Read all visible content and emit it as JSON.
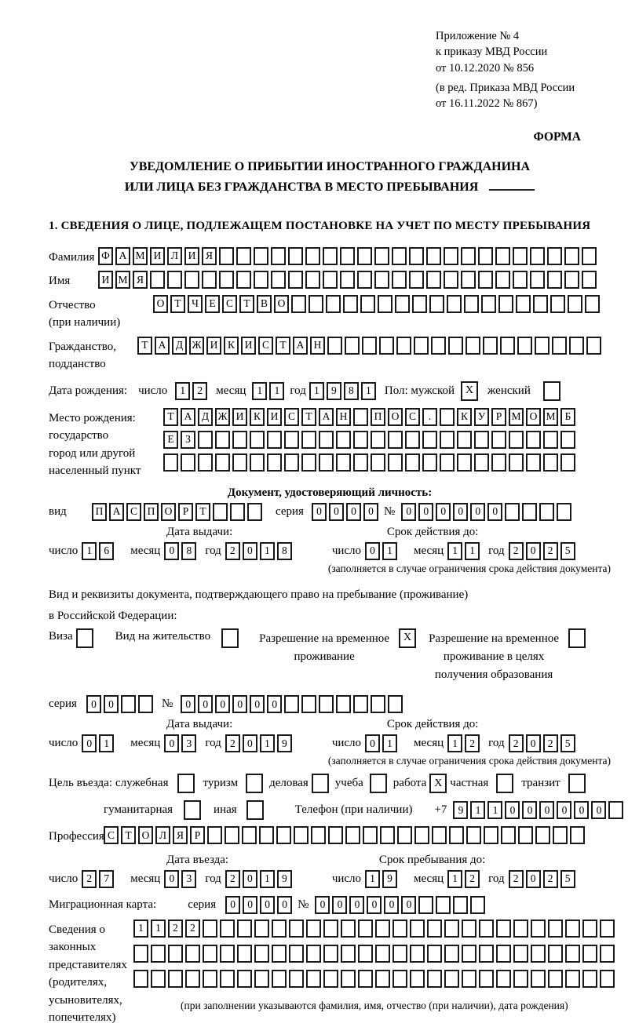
{
  "annex": {
    "line1": "Приложение № 4",
    "line2": "к приказу МВД России",
    "line3": "от 10.12.2020 № 856",
    "line4": "(в ред. Приказа МВД России",
    "line5": "от 16.11.2022 № 867)"
  },
  "forma": "ФОРМА",
  "title_line1": "УВЕДОМЛЕНИЕ О ПРИБЫТИИ ИНОСТРАННОГО ГРАЖДАНИНА",
  "title_line2": "ИЛИ ЛИЦА БЕЗ ГРАЖДАНСТВА В МЕСТО ПРЕБЫВАНИЯ",
  "section1_heading": "1. СВЕДЕНИЯ О ЛИЦЕ, ПОДЛЕЖАЩЕМ ПОСТАНОВКЕ НА УЧЕТ ПО МЕСТУ ПРЕБЫВАНИЯ",
  "surname": {
    "label": "Фамилия",
    "cells": {
      "text": "ФАМИЛИЯ",
      "len": 29
    }
  },
  "firstname": {
    "label": "Имя",
    "cells": {
      "text": "ИМЯ",
      "len": 29
    }
  },
  "patronymic": {
    "label": "Отчество\n(при наличии)",
    "cells": {
      "text": "ОТЧЕСТВО",
      "len": 26
    }
  },
  "citizenship": {
    "label": "Гражданство,\nподданство",
    "cells": {
      "text": "ТАДЖИКИСТАН",
      "len": 27
    }
  },
  "birthdate": {
    "label": "Дата рождения:",
    "day_label": "число",
    "day": {
      "text": "12",
      "len": 2
    },
    "month_label": "месяц",
    "month": {
      "text": "11",
      "len": 2
    },
    "year_label": "год",
    "year": {
      "text": "1981",
      "len": 4
    },
    "sex_label": "Пол: мужской",
    "male_checked": "X",
    "female_label": "женский",
    "female_checked": ""
  },
  "birthplace": {
    "label": "Место рождения:\nгосударство\nгород или другой\nнаселенный пункт",
    "row1": {
      "text": "ТАДЖИКИСТАН ПОС. КУРМОМБ",
      "len": 24
    },
    "row2": {
      "text": "ЕЗ",
      "len": 24
    },
    "row3": {
      "text": "",
      "len": 24
    }
  },
  "identity_doc": {
    "heading": "Документ, удостоверяющий личность:",
    "type_label": "вид",
    "type": {
      "text": "ПАСПОРТ",
      "len": 10
    },
    "series_label": "серия",
    "series": {
      "text": "0000",
      "len": 4
    },
    "number_label": "№",
    "number": {
      "text": "000000",
      "len": 10
    },
    "issue_title": "Дата выдачи:",
    "issue": {
      "day_label": "число",
      "day": {
        "text": "16",
        "len": 2
      },
      "month_label": "месяц",
      "month": {
        "text": "08",
        "len": 2
      },
      "year_label": "год",
      "year": {
        "text": "2018",
        "len": 4
      }
    },
    "valid_title": "Срок действия до:",
    "valid": {
      "day_label": "число",
      "day": {
        "text": "01",
        "len": 2
      },
      "month_label": "месяц",
      "month": {
        "text": "11",
        "len": 2
      },
      "year_label": "год",
      "year": {
        "text": "2025",
        "len": 4
      }
    },
    "note": "(заполняется в случае ограничения срока действия документа)"
  },
  "residence_doc": {
    "heading": "Вид и реквизиты документа, подтверждающего право на пребывание (проживание)\nв Российской Федерации:",
    "opt_visa_label": "Виза",
    "opt_visa_checked": "",
    "opt_residence_label": "Вид на жительство",
    "opt_residence_checked": "",
    "opt_temp_label": "Разрешение на временное\nпроживание",
    "opt_temp_checked": "X",
    "opt_edu_label": "Разрешение на временное\nпроживание в целях\nполучения образования",
    "opt_edu_checked": "",
    "series_label": "серия",
    "series": {
      "text": "00",
      "len": 4
    },
    "number_label": "№",
    "number": {
      "text": "000000",
      "len": 13
    },
    "issue_title": "Дата выдачи:",
    "issue": {
      "day_label": "число",
      "day": {
        "text": "01",
        "len": 2
      },
      "month_label": "месяц",
      "month": {
        "text": "03",
        "len": 2
      },
      "year_label": "год",
      "year": {
        "text": "2019",
        "len": 4
      }
    },
    "valid_title": "Срок действия до:",
    "valid": {
      "day_label": "число",
      "day": {
        "text": "01",
        "len": 2
      },
      "month_label": "месяц",
      "month": {
        "text": "12",
        "len": 2
      },
      "year_label": "год",
      "year": {
        "text": "2025",
        "len": 4
      }
    },
    "note": "(заполняется в случае ограничения срока действия документа)"
  },
  "purpose": {
    "label": "Цель въезда:",
    "opt1_label": "служебная",
    "opt1_checked": "",
    "opt2_label": "туризм",
    "opt2_checked": "",
    "opt3_label": "деловая",
    "opt3_checked": "",
    "opt4_label": "учеба",
    "opt4_checked": "",
    "opt5_label": "работа",
    "opt5_checked": "X",
    "opt6_label": "частная",
    "opt6_checked": "",
    "opt7_label": "транзит",
    "opt7_checked": "",
    "opt8_label": "гуманитарная",
    "opt8_checked": "",
    "opt9_label": "иная",
    "opt9_checked": "",
    "phone_label": "Телефон (при наличии)",
    "phone_prefix": "+7",
    "phone": {
      "text": "911000000",
      "len": 10
    }
  },
  "profession": {
    "label": "Профессия",
    "cells": {
      "text": "СТОЛЯР",
      "len": 28
    }
  },
  "entry": {
    "issue_title": "Дата въезда:",
    "issue": {
      "day_label": "число",
      "day": {
        "text": "27",
        "len": 2
      },
      "month_label": "месяц",
      "month": {
        "text": "03",
        "len": 2
      },
      "year_label": "год",
      "year": {
        "text": "2019",
        "len": 4
      }
    },
    "valid_title": "Срок пребывания до:",
    "valid": {
      "day_label": "число",
      "day": {
        "text": "19",
        "len": 2
      },
      "month_label": "месяц",
      "month": {
        "text": "12",
        "len": 2
      },
      "year_label": "год",
      "year": {
        "text": "2025",
        "len": 4
      }
    }
  },
  "migration_card": {
    "label": "Миграционная карта:",
    "series_label": "серия",
    "series": {
      "text": "0000",
      "len": 4
    },
    "number_label": "№",
    "number": {
      "text": "000000",
      "len": 10
    }
  },
  "representatives": {
    "label": "Сведения о\nзаконных\nпредставителях\n(родителях,\nусыновителях,\nпопечителях)",
    "row1": {
      "text": "1122",
      "len": 28
    },
    "row2": {
      "text": "",
      "len": 28
    },
    "row3": {
      "text": "",
      "len": 28
    },
    "note": "(при заполнении указываются фамилия, имя, отчество (при наличии), дата рождения)"
  }
}
